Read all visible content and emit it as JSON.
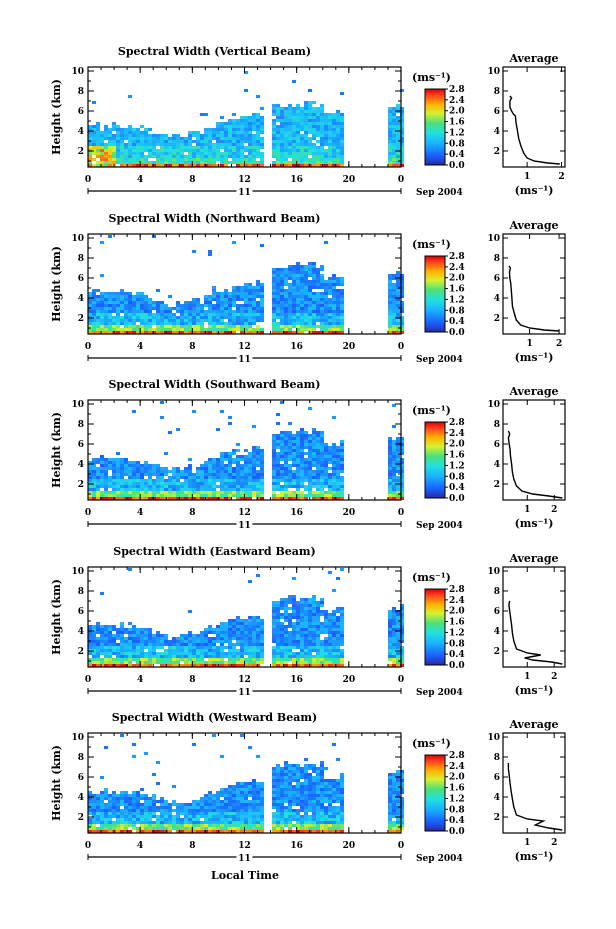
{
  "chart_data": [
    {
      "type": "heatmap",
      "title": "Spectral Width (Vertical Beam)",
      "ylabel": "Height (km)",
      "x_ticks": [
        "0",
        "4",
        "8",
        "12",
        "16",
        "20",
        "0"
      ],
      "y_ticks": [
        "2",
        "4",
        "6",
        "8",
        "10"
      ],
      "xlim": [
        0,
        24
      ],
      "ylim": [
        0.4,
        10.4
      ],
      "day_label": "11",
      "month_label": "Sep 2004",
      "cbar_unit": "(ms⁻¹)",
      "cbar_ticks": [
        "0.0",
        "0.4",
        "0.8",
        "1.2",
        "1.6",
        "2.0",
        "2.4",
        "2.8"
      ],
      "cbar_range": [
        0,
        2.8
      ],
      "avg": {
        "title": "Average",
        "xlabel": "(ms⁻¹)",
        "x_ticks": [
          "1",
          "2"
        ],
        "xlim": [
          0.3,
          2.1
        ],
        "y_ticks": [
          "2",
          "4",
          "6",
          "8",
          "10"
        ],
        "ylim": [
          0.4,
          10.4
        ],
        "points": [
          [
            1.95,
            0.7
          ],
          [
            1.6,
            0.8
          ],
          [
            1.2,
            1.0
          ],
          [
            1.0,
            1.3
          ],
          [
            0.9,
            1.8
          ],
          [
            0.82,
            2.5
          ],
          [
            0.76,
            3.2
          ],
          [
            0.72,
            4.0
          ],
          [
            0.68,
            4.8
          ],
          [
            0.66,
            5.5
          ],
          [
            0.6,
            5.7
          ],
          [
            0.55,
            6.0
          ],
          [
            0.5,
            6.4
          ],
          [
            0.5,
            7.0
          ],
          [
            0.55,
            7.3
          ],
          [
            0.5,
            7.5
          ]
        ]
      }
    },
    {
      "type": "heatmap",
      "title": "Spectral Width (Northward Beam)",
      "ylabel": "Height (km)",
      "x_ticks": [
        "0",
        "4",
        "8",
        "12",
        "16",
        "20",
        "0"
      ],
      "y_ticks": [
        "2",
        "4",
        "6",
        "8",
        "10"
      ],
      "xlim": [
        0,
        24
      ],
      "ylim": [
        0.4,
        10.4
      ],
      "day_label": "11",
      "month_label": "Sep 2004",
      "cbar_unit": "(ms⁻¹)",
      "cbar_ticks": [
        "0.0",
        "0.4",
        "0.8",
        "1.2",
        "1.6",
        "2.0",
        "2.4",
        "2.8"
      ],
      "cbar_range": [
        0,
        2.8
      ],
      "avg": {
        "title": "Average",
        "xlabel": "(ms⁻¹)",
        "x_ticks": [
          "1",
          "2"
        ],
        "xlim": [
          0.1,
          2.2
        ],
        "y_ticks": [
          "2",
          "4",
          "6",
          "8",
          "10"
        ],
        "ylim": [
          0.4,
          10.4
        ],
        "points": [
          [
            2.0,
            0.7
          ],
          [
            1.5,
            0.8
          ],
          [
            1.0,
            1.0
          ],
          [
            0.7,
            1.3
          ],
          [
            0.55,
            1.8
          ],
          [
            0.48,
            2.5
          ],
          [
            0.42,
            3.2
          ],
          [
            0.4,
            4.0
          ],
          [
            0.38,
            4.8
          ],
          [
            0.36,
            5.5
          ],
          [
            0.33,
            6.0
          ],
          [
            0.32,
            6.6
          ],
          [
            0.35,
            7.0
          ],
          [
            0.3,
            7.2
          ]
        ]
      }
    },
    {
      "type": "heatmap",
      "title": "Spectral Width (Southward Beam)",
      "ylabel": "Height (km)",
      "x_ticks": [
        "0",
        "4",
        "8",
        "12",
        "16",
        "20",
        "0"
      ],
      "y_ticks": [
        "2",
        "4",
        "6",
        "8",
        "10"
      ],
      "xlim": [
        0,
        24
      ],
      "ylim": [
        0.4,
        10.4
      ],
      "day_label": "11",
      "month_label": "Sep 2004",
      "cbar_unit": "(ms⁻¹)",
      "cbar_ticks": [
        "0.0",
        "0.4",
        "0.8",
        "1.2",
        "1.6",
        "2.0",
        "2.4",
        "2.8"
      ],
      "cbar_range": [
        0,
        2.8
      ],
      "avg": {
        "title": "Average",
        "xlabel": "(ms⁻¹)",
        "x_ticks": [
          "1",
          "2"
        ],
        "xlim": [
          0.1,
          2.4
        ],
        "y_ticks": [
          "2",
          "4",
          "6",
          "8",
          "10"
        ],
        "ylim": [
          0.4,
          10.4
        ],
        "points": [
          [
            2.3,
            0.6
          ],
          [
            1.8,
            0.8
          ],
          [
            1.2,
            1.0
          ],
          [
            0.8,
            1.3
          ],
          [
            0.6,
            1.8
          ],
          [
            0.5,
            2.5
          ],
          [
            0.45,
            3.2
          ],
          [
            0.42,
            4.0
          ],
          [
            0.38,
            4.8
          ],
          [
            0.36,
            5.5
          ],
          [
            0.33,
            6.0
          ],
          [
            0.3,
            6.6
          ],
          [
            0.35,
            7.0
          ],
          [
            0.3,
            7.3
          ]
        ]
      }
    },
    {
      "type": "heatmap",
      "title": "Spectral Width (Eastward Beam)",
      "ylabel": "Height (km)",
      "x_ticks": [
        "0",
        "4",
        "8",
        "12",
        "16",
        "20",
        "0"
      ],
      "y_ticks": [
        "2",
        "4",
        "6",
        "8",
        "10"
      ],
      "xlim": [
        0,
        24
      ],
      "ylim": [
        0.4,
        10.4
      ],
      "day_label": "11",
      "month_label": "Sep 2004",
      "cbar_unit": "(ms⁻¹)",
      "cbar_ticks": [
        "0.0",
        "0.4",
        "0.8",
        "1.2",
        "1.6",
        "2.0",
        "2.4",
        "2.8"
      ],
      "cbar_range": [
        0,
        2.8
      ],
      "avg": {
        "title": "Average",
        "xlabel": "(ms⁻¹)",
        "x_ticks": [
          "1",
          "2"
        ],
        "xlim": [
          0.1,
          2.4
        ],
        "y_ticks": [
          "2",
          "4",
          "6",
          "8",
          "10"
        ],
        "ylim": [
          0.4,
          10.4
        ],
        "points": [
          [
            2.3,
            0.7
          ],
          [
            1.9,
            0.9
          ],
          [
            1.2,
            1.1
          ],
          [
            0.9,
            1.3
          ],
          [
            1.5,
            1.6
          ],
          [
            1.0,
            1.8
          ],
          [
            0.6,
            2.2
          ],
          [
            0.5,
            3.0
          ],
          [
            0.45,
            3.8
          ],
          [
            0.42,
            4.6
          ],
          [
            0.38,
            5.4
          ],
          [
            0.35,
            6.0
          ],
          [
            0.32,
            6.6
          ],
          [
            0.35,
            7.0
          ]
        ]
      }
    },
    {
      "type": "heatmap",
      "title": "Spectral Width (Westward Beam)",
      "ylabel": "Height (km)",
      "x_ticks": [
        "0",
        "4",
        "8",
        "12",
        "16",
        "20",
        "0"
      ],
      "y_ticks": [
        "2",
        "4",
        "6",
        "8",
        "10"
      ],
      "xlim": [
        0,
        24
      ],
      "ylim": [
        0.4,
        10.4
      ],
      "day_label": "11",
      "month_label": "Sep 2004",
      "cbar_unit": "(ms⁻¹)",
      "cbar_ticks": [
        "0.0",
        "0.4",
        "0.8",
        "1.2",
        "1.6",
        "2.0",
        "2.4",
        "2.8"
      ],
      "cbar_range": [
        0,
        2.8
      ],
      "avg": {
        "title": "Average",
        "xlabel": "(ms⁻¹)",
        "x_ticks": [
          "1",
          "2"
        ],
        "xlim": [
          0.1,
          2.4
        ],
        "y_ticks": [
          "2",
          "4",
          "6",
          "8",
          "10"
        ],
        "ylim": [
          0.4,
          10.4
        ],
        "points": [
          [
            2.3,
            0.7
          ],
          [
            1.8,
            0.9
          ],
          [
            1.3,
            1.2
          ],
          [
            1.6,
            1.6
          ],
          [
            1.0,
            1.8
          ],
          [
            0.6,
            2.2
          ],
          [
            0.5,
            3.0
          ],
          [
            0.45,
            3.8
          ],
          [
            0.4,
            4.6
          ],
          [
            0.36,
            5.4
          ],
          [
            0.33,
            6.2
          ],
          [
            0.3,
            6.8
          ],
          [
            0.3,
            7.4
          ]
        ]
      }
    }
  ],
  "xlabel": "Local Time"
}
